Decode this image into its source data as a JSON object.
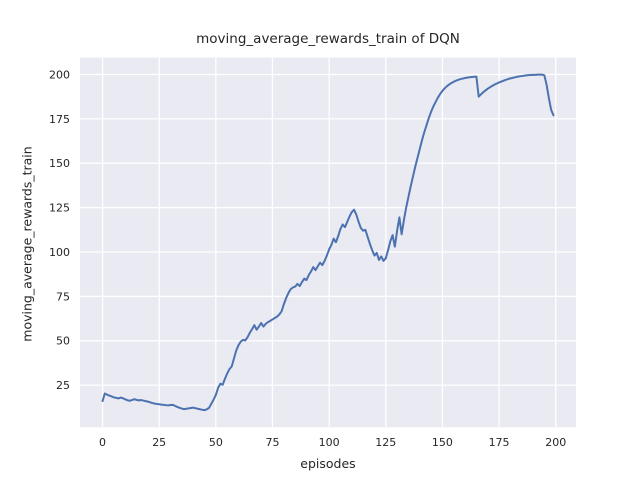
{
  "chart_data": {
    "type": "line",
    "title": "moving_average_rewards_train of DQN",
    "xlabel": "episodes",
    "ylabel": "moving_average_rewards_train",
    "x_start": 0,
    "x_step": 1,
    "xticks": [
      0,
      25,
      50,
      75,
      100,
      125,
      150,
      175,
      200
    ],
    "yticks": [
      25,
      50,
      75,
      100,
      125,
      150,
      175,
      200
    ],
    "xlim": [
      -9.95,
      208.95
    ],
    "ylim": [
      1.3,
      209.5
    ],
    "grid": true,
    "legend": "none",
    "plot_bg": "#EAEAF2",
    "grid_color": "#FFFFFF",
    "fig_bg": "#FFFFFF",
    "text_color": "#262626",
    "series": [
      {
        "name": "moving_average_rewards_train",
        "color": "#4C72B0",
        "values": [
          16.0,
          20.3,
          19.6,
          19.1,
          18.6,
          18.1,
          17.8,
          17.5,
          18.0,
          17.6,
          17.0,
          16.5,
          16.2,
          16.6,
          17.1,
          16.7,
          16.4,
          16.6,
          16.3,
          16.0,
          15.7,
          15.3,
          14.9,
          14.6,
          14.4,
          14.2,
          14.0,
          13.9,
          13.7,
          13.6,
          13.8,
          13.9,
          13.3,
          12.7,
          12.2,
          11.8,
          11.5,
          11.7,
          11.9,
          12.1,
          12.3,
          12.0,
          11.7,
          11.4,
          11.1,
          10.9,
          11.4,
          12.2,
          14.5,
          16.8,
          19.5,
          23.5,
          25.8,
          25.2,
          28.5,
          31.5,
          34.0,
          35.5,
          40.0,
          44.5,
          47.5,
          49.5,
          50.5,
          50.2,
          52.0,
          54.5,
          56.5,
          58.8,
          56.2,
          58.0,
          60.0,
          58.0,
          59.5,
          60.5,
          61.2,
          62.0,
          62.8,
          63.6,
          64.8,
          66.5,
          70.5,
          74.0,
          76.8,
          79.0,
          80.0,
          80.5,
          82.0,
          80.8,
          83.0,
          85.0,
          84.2,
          87.0,
          89.0,
          91.5,
          89.8,
          92.0,
          94.0,
          92.6,
          95.0,
          98.0,
          101.5,
          104.0,
          107.5,
          105.5,
          109.0,
          113.0,
          115.5,
          114.0,
          117.0,
          120.0,
          122.5,
          123.8,
          121.0,
          117.0,
          113.5,
          112.0,
          112.5,
          108.5,
          104.5,
          101.0,
          98.0,
          99.5,
          95.5,
          97.5,
          95.0,
          96.5,
          101.0,
          106.0,
          109.5,
          103.0,
          112.0,
          119.5,
          110.0,
          118.0,
          125.0,
          131.0,
          137.0,
          142.5,
          148.0,
          153.0,
          158.0,
          163.0,
          167.5,
          171.5,
          175.5,
          179.0,
          182.0,
          184.5,
          187.0,
          189.0,
          190.8,
          192.2,
          193.4,
          194.4,
          195.2,
          195.9,
          196.5,
          197.0,
          197.4,
          197.7,
          198.0,
          198.2,
          198.4,
          198.6,
          198.7,
          198.8,
          187.5,
          188.8,
          190.0,
          191.0,
          192.0,
          192.8,
          193.6,
          194.3,
          194.9,
          195.5,
          196.0,
          196.5,
          197.0,
          197.4,
          197.8,
          198.1,
          198.4,
          198.7,
          198.9,
          199.1,
          199.3,
          199.5,
          199.6,
          199.7,
          199.8,
          199.8,
          199.9,
          199.9,
          199.9,
          199.5,
          194.0,
          186.5,
          180.0,
          177.0
        ]
      }
    ]
  }
}
